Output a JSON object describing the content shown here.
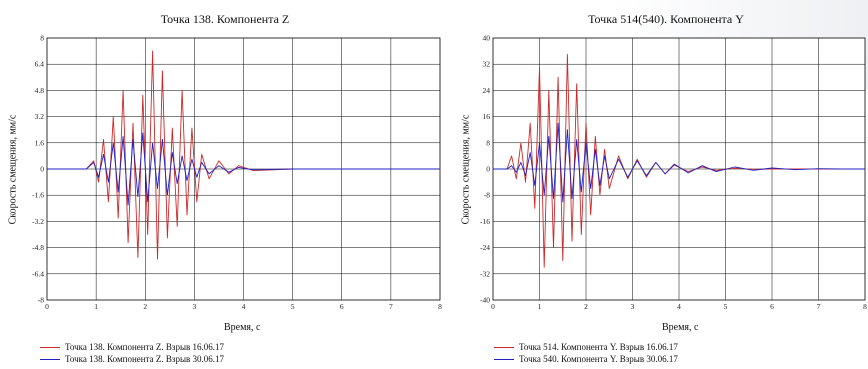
{
  "chart_data": [
    {
      "type": "line",
      "title": "Точка 138. Компонента Z",
      "xlabel": "Время, с",
      "ylabel": "Скорость смещения, мм/с",
      "xlim": [
        0,
        8
      ],
      "ylim": [
        -8,
        8
      ],
      "xticks": [
        "0",
        "1",
        "2",
        "3",
        "4",
        "5",
        "6",
        "7",
        "8"
      ],
      "yticks": [
        "8",
        "6.4",
        "4.8",
        "3.2",
        "1.6",
        "0",
        "-1.6",
        "-3.2",
        "-4.8",
        "-6.4",
        "-8"
      ],
      "grid": true,
      "legend_position": "bottom-left",
      "series": [
        {
          "name": "Точка 138. Компонента Z. Взрыв 16.06.17",
          "color": "#cc2a2a",
          "x": [
            0,
            0.8,
            0.95,
            1.05,
            1.15,
            1.25,
            1.35,
            1.45,
            1.55,
            1.65,
            1.75,
            1.85,
            1.95,
            2.05,
            2.15,
            2.25,
            2.35,
            2.45,
            2.55,
            2.65,
            2.75,
            2.85,
            2.95,
            3.05,
            3.15,
            3.3,
            3.5,
            3.7,
            3.9,
            4.2,
            5,
            6,
            7,
            8
          ],
          "y": [
            0,
            0,
            0.5,
            -0.8,
            1.8,
            -2.0,
            3.2,
            -3.0,
            4.8,
            -4.5,
            2.8,
            -5.4,
            4.5,
            -4.0,
            7.2,
            -5.5,
            6.0,
            -4.2,
            2.5,
            -3.5,
            4.8,
            -2.8,
            2.5,
            -2.0,
            0.9,
            -0.6,
            0.5,
            -0.3,
            0.2,
            -0.1,
            0,
            0,
            0,
            0
          ]
        },
        {
          "name": "Точка 138. Компонента Z. Взрыв 30.06.17",
          "color": "#2020c0",
          "x": [
            0,
            0.8,
            0.95,
            1.05,
            1.15,
            1.25,
            1.35,
            1.45,
            1.55,
            1.65,
            1.75,
            1.85,
            1.95,
            2.05,
            2.15,
            2.25,
            2.35,
            2.45,
            2.55,
            2.65,
            2.75,
            2.85,
            2.95,
            3.05,
            3.15,
            3.3,
            3.5,
            3.7,
            3.9,
            4.2,
            5,
            6,
            7,
            8
          ],
          "y": [
            0,
            0,
            0.4,
            -0.5,
            0.9,
            -0.8,
            1.6,
            -1.4,
            2.0,
            -2.2,
            1.8,
            -1.7,
            2.2,
            -2.0,
            1.6,
            -1.2,
            1.8,
            -1.6,
            1.0,
            -0.9,
            0.8,
            -0.7,
            0.6,
            -0.5,
            0.4,
            -0.3,
            0.2,
            -0.2,
            0.1,
            -0.05,
            0,
            0,
            0,
            0
          ]
        }
      ]
    },
    {
      "type": "line",
      "title": "Точка 514(540). Компонента Y",
      "xlabel": "Время, с",
      "ylabel": "Скорость смещения, мм/с",
      "xlim": [
        0,
        8
      ],
      "ylim": [
        -40,
        40
      ],
      "xticks": [
        "0",
        "1",
        "2",
        "3",
        "4",
        "5",
        "6",
        "7",
        "8"
      ],
      "yticks": [
        "40",
        "32",
        "24",
        "16",
        "8",
        "0",
        "-8",
        "-16",
        "-24",
        "-32",
        "-40"
      ],
      "grid": true,
      "legend_position": "bottom-left",
      "series": [
        {
          "name": "Точка 514. Компонента Y. Взрыв 16.06.17",
          "color": "#cc2a2a",
          "x": [
            0,
            0.3,
            0.4,
            0.5,
            0.6,
            0.7,
            0.8,
            0.9,
            1.0,
            1.1,
            1.2,
            1.3,
            1.4,
            1.5,
            1.6,
            1.7,
            1.8,
            1.9,
            2.0,
            2.1,
            2.2,
            2.3,
            2.4,
            2.5,
            2.7,
            2.9,
            3.1,
            3.3,
            3.5,
            3.7,
            3.9,
            4.2,
            4.5,
            4.8,
            5.2,
            5.6,
            6,
            6.5,
            7,
            7.5,
            8
          ],
          "y": [
            0,
            0,
            4,
            -3,
            8,
            -4,
            14,
            -12,
            31,
            -30,
            24,
            -24,
            28,
            -28,
            35,
            -22,
            26,
            -20,
            14,
            -14,
            10,
            -8,
            6,
            -6,
            4,
            -3,
            3,
            -2.5,
            2,
            -1.5,
            1.2,
            -0.8,
            0.6,
            -0.4,
            0.2,
            -0.1,
            0,
            0,
            0,
            0,
            0
          ]
        },
        {
          "name": "Точка 540. Компонента Y. Взрыв 30.06.17",
          "color": "#2020c0",
          "x": [
            0,
            0.3,
            0.4,
            0.5,
            0.6,
            0.7,
            0.8,
            0.9,
            1.0,
            1.1,
            1.2,
            1.3,
            1.4,
            1.5,
            1.6,
            1.7,
            1.8,
            1.9,
            2.0,
            2.1,
            2.2,
            2.3,
            2.4,
            2.5,
            2.7,
            2.9,
            3.1,
            3.3,
            3.5,
            3.7,
            3.9,
            4.2,
            4.5,
            4.8,
            5.2,
            5.6,
            6,
            6.5,
            7,
            7.5,
            8
          ],
          "y": [
            0,
            0,
            1,
            -1,
            2,
            -2,
            5,
            -5,
            8,
            -8,
            10,
            -9,
            14,
            -10,
            12,
            -9,
            9,
            -7,
            8,
            -6,
            6,
            -5,
            4,
            -3,
            3,
            -2.5,
            2.5,
            -2,
            2,
            -1.5,
            1.5,
            -1.2,
            1.0,
            -0.8,
            0.6,
            -0.4,
            0.3,
            -0.2,
            0.1,
            0,
            0
          ]
        }
      ]
    }
  ]
}
